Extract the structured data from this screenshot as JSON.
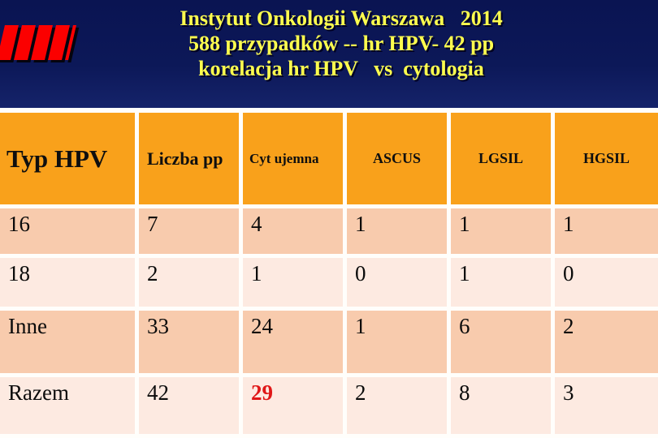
{
  "slide": {
    "header": {
      "background_color": "#0c1858",
      "title_color": "#ffff4e",
      "title_lines": [
        "Instytut Onkologii Warszawa   2014",
        "588 przypadków -- hr HPV- 42 pp",
        "korelacja hr HPV   vs  cytologia"
      ],
      "logo": {
        "name": "red-stripes-logo",
        "color": "#fb0000",
        "stripe_count": 4
      }
    },
    "table": {
      "header_bg": "#f9a11b",
      "row_bg_dark": "#f8cbad",
      "row_bg_light": "#fdeae1",
      "highlight_color": "#e01717",
      "columns": [
        "Typ HPV",
        "Liczba pp",
        "Cyt ujemna",
        "ASCUS",
        "LGSIL",
        "HGSIL"
      ],
      "rows": [
        {
          "cells": [
            "16",
            "7",
            "4",
            "1",
            "1",
            "1"
          ]
        },
        {
          "cells": [
            "18",
            "2",
            "1",
            "0",
            "1",
            "0"
          ]
        },
        {
          "cells": [
            "Inne",
            "33",
            "24",
            "1",
            "6",
            "2"
          ]
        },
        {
          "cells": [
            "Razem",
            "42",
            "29",
            "2",
            "8",
            "3"
          ]
        }
      ]
    }
  },
  "chart_data": {
    "type": "table",
    "title": "Instytut Onkologii Warszawa 2014 — 588 przypadków -- hr HPV- 42 pp — korelacja hr HPV vs cytologia",
    "columns": [
      "Typ HPV",
      "Liczba pp",
      "Cyt ujemna",
      "ASCUS",
      "LGSIL",
      "HGSIL"
    ],
    "rows": [
      [
        "16",
        7,
        4,
        1,
        1,
        1
      ],
      [
        "18",
        2,
        1,
        0,
        1,
        0
      ],
      [
        "Inne",
        33,
        24,
        1,
        6,
        2
      ],
      [
        "Razem",
        42,
        29,
        2,
        8,
        3
      ]
    ],
    "notes": "Value 29 (Razem / Cyt ujemna) shown in bold red"
  }
}
